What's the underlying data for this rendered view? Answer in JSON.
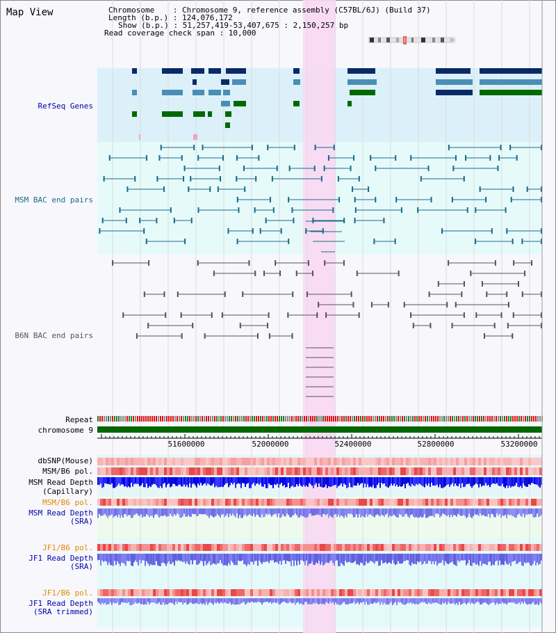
{
  "title": "Map View",
  "header": {
    "lines": [
      "Chromosome    : Chromosome 9, reference assembly (C57BL/6J) (Build 37)",
      "Length (b.p.) : 124,076,172",
      "Show (b.p.) : 51,257,419-53,407,675 : 2,150,257 bp",
      "Read coverage check span : 10,000"
    ]
  },
  "tracks": {
    "refseq": "RefSeq Genes",
    "msm_bac": "MSM BAC end pairs",
    "b6n_bac": "B6N BAC end pairs",
    "repeat": "Repeat",
    "chromosome": "chromosome 9",
    "dbsnp": "dbSNP(Mouse)",
    "msm_b6_pol_1": "MSM/B6 pol.",
    "msm_read_depth_cap_1": "MSM Read Depth",
    "msm_read_depth_cap_2": "(Capillary)",
    "msm_b6_pol_2": "MSM/B6 pol.",
    "msm_read_depth_sra_1": "MSM Read Depth",
    "msm_read_depth_sra_2": "(SRA)",
    "jf1_b6_pol_1": "JF1/B6 pol.",
    "jf1_read_depth_sra_1": "JF1 Read Depth",
    "jf1_read_depth_sra_2": "(SRA)",
    "jf1_b6_pol_2": "JF1/B6 pol.",
    "jf1_read_depth_trim_1": "JF1 Read Depth",
    "jf1_read_depth_trim_2": "(SRA trimmed)"
  },
  "axis": {
    "ticks": [
      "51600000",
      "52000000",
      "52400000",
      "52800000",
      "53200000"
    ]
  },
  "colors": {
    "refseq_bg": "#dcf0fa",
    "bac_bg": "#e6fafa",
    "highlight": "#f8d8f2",
    "gene_dark": "#0a2a66",
    "gene_mid": "#4a8eb5",
    "gene_green": "#006a00",
    "msm_line": "#1a6a8a",
    "b6n_line": "#555555",
    "orange_label": "#e08a00",
    "blue_label": "#0000aa"
  }
}
